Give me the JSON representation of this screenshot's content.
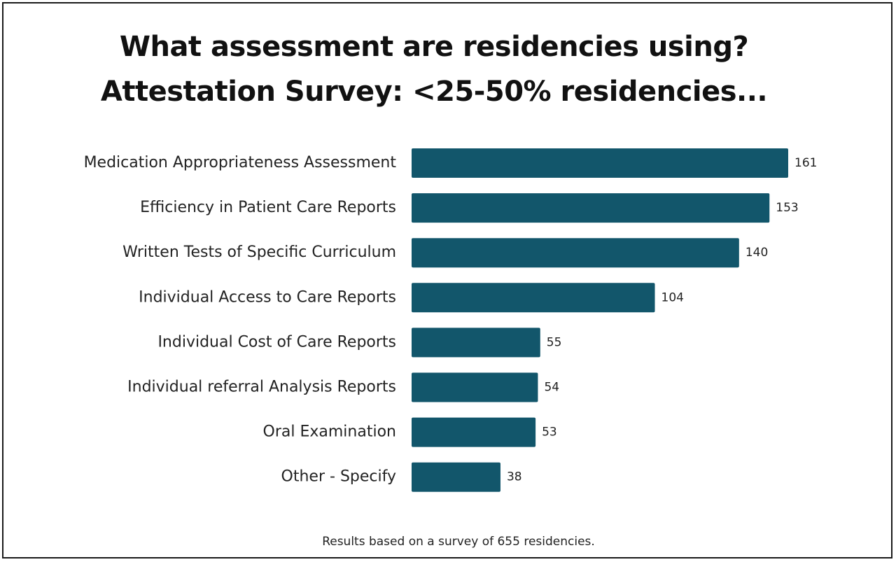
{
  "chart_data": {
    "type": "bar",
    "orientation": "horizontal",
    "title": "What assessment are residencies using?",
    "subtitle": "Attestation Survey: <25-50% residencies...",
    "categories": [
      "Medication Appropriateness Assessment",
      "Efficiency in Patient Care Reports",
      "Written Tests of Specific Curriculum",
      "Individual Access to Care Reports",
      "Individual Cost of Care Reports",
      "Individual referral Analysis Reports",
      "Oral Examination",
      "Other - Specify"
    ],
    "values": [
      161,
      153,
      140,
      104,
      55,
      54,
      53,
      38
    ],
    "xlabel": "",
    "ylabel": "",
    "xlim": [
      0,
      161
    ],
    "grid": false,
    "legend": "none",
    "bar_color": "#12566b",
    "footnote": "Results based on a survey of 655 residencies."
  }
}
